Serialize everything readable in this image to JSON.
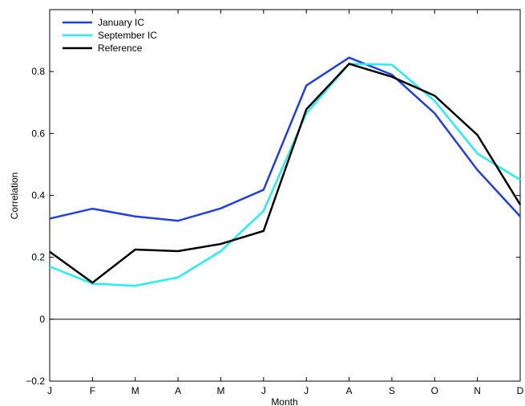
{
  "chart_data": {
    "type": "line",
    "title": "",
    "xlabel": "Month",
    "ylabel": "Correlation",
    "categories": [
      "J",
      "F",
      "M",
      "A",
      "M",
      "J",
      "J",
      "A",
      "S",
      "O",
      "N",
      "D"
    ],
    "ylim": [
      -0.2,
      1.0
    ],
    "yticks": [
      -0.2,
      0,
      0.2,
      0.4,
      0.6,
      0.8
    ],
    "ytick_labels": [
      "−0.2",
      "0",
      "0.2",
      "0.4",
      "0.6",
      "0.8"
    ],
    "zero_line": true,
    "grid": false,
    "legend_position": "top-left",
    "series": [
      {
        "name": "January IC",
        "color": "#1f3fe6",
        "values": [
          0.325,
          0.357,
          0.332,
          0.318,
          0.358,
          0.418,
          0.755,
          0.845,
          0.79,
          0.665,
          0.482,
          0.332
        ]
      },
      {
        "name": "September IC",
        "color": "#22f0f0",
        "values": [
          0.17,
          0.115,
          0.108,
          0.135,
          0.22,
          0.35,
          0.665,
          0.825,
          0.822,
          0.705,
          0.535,
          0.45
        ]
      },
      {
        "name": "Reference",
        "color": "#000000",
        "values": [
          0.218,
          0.118,
          0.225,
          0.22,
          0.243,
          0.285,
          0.678,
          0.825,
          0.783,
          0.722,
          0.595,
          0.37
        ]
      }
    ]
  }
}
